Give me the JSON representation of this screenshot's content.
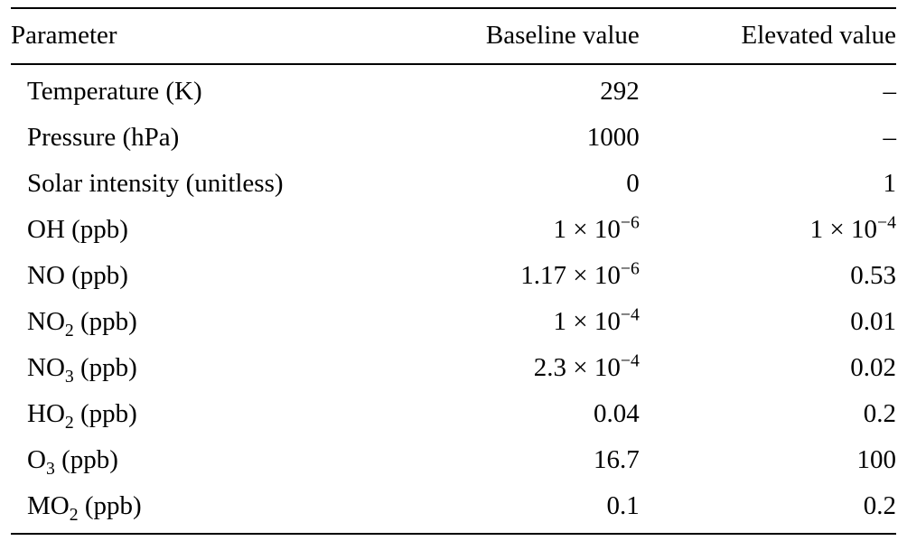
{
  "table": {
    "columns": [
      "Parameter",
      "Baseline value",
      "Elevated value"
    ],
    "rows": [
      {
        "param_base": "Temperature (K)",
        "param_sub": "",
        "param_after": "",
        "baseline_main": "292",
        "baseline_exp": "",
        "elevated_main": "–",
        "elevated_exp": ""
      },
      {
        "param_base": "Pressure (hPa)",
        "param_sub": "",
        "param_after": "",
        "baseline_main": "1000",
        "baseline_exp": "",
        "elevated_main": "–",
        "elevated_exp": ""
      },
      {
        "param_base": "Solar intensity (unitless)",
        "param_sub": "",
        "param_after": "",
        "baseline_main": "0",
        "baseline_exp": "",
        "elevated_main": "1",
        "elevated_exp": ""
      },
      {
        "param_base": "OH (ppb)",
        "param_sub": "",
        "param_after": "",
        "baseline_main": "1 × 10",
        "baseline_exp": "−6",
        "elevated_main": "1 × 10",
        "elevated_exp": "−4"
      },
      {
        "param_base": "NO (ppb)",
        "param_sub": "",
        "param_after": "",
        "baseline_main": "1.17 × 10",
        "baseline_exp": "−6",
        "elevated_main": "0.53",
        "elevated_exp": ""
      },
      {
        "param_base": "NO",
        "param_sub": "2",
        "param_after": " (ppb)",
        "baseline_main": "1 × 10",
        "baseline_exp": "−4",
        "elevated_main": "0.01",
        "elevated_exp": ""
      },
      {
        "param_base": "NO",
        "param_sub": "3",
        "param_after": " (ppb)",
        "baseline_main": "2.3 × 10",
        "baseline_exp": "−4",
        "elevated_main": "0.02",
        "elevated_exp": ""
      },
      {
        "param_base": "HO",
        "param_sub": "2",
        "param_after": " (ppb)",
        "baseline_main": "0.04",
        "baseline_exp": "",
        "elevated_main": "0.2",
        "elevated_exp": ""
      },
      {
        "param_base": "O",
        "param_sub": "3",
        "param_after": " (ppb)",
        "baseline_main": "16.7",
        "baseline_exp": "",
        "elevated_main": "100",
        "elevated_exp": ""
      },
      {
        "param_base": "MO",
        "param_sub": "2",
        "param_after": " (ppb)",
        "baseline_main": "0.1",
        "baseline_exp": "",
        "elevated_main": "0.2",
        "elevated_exp": ""
      }
    ]
  }
}
